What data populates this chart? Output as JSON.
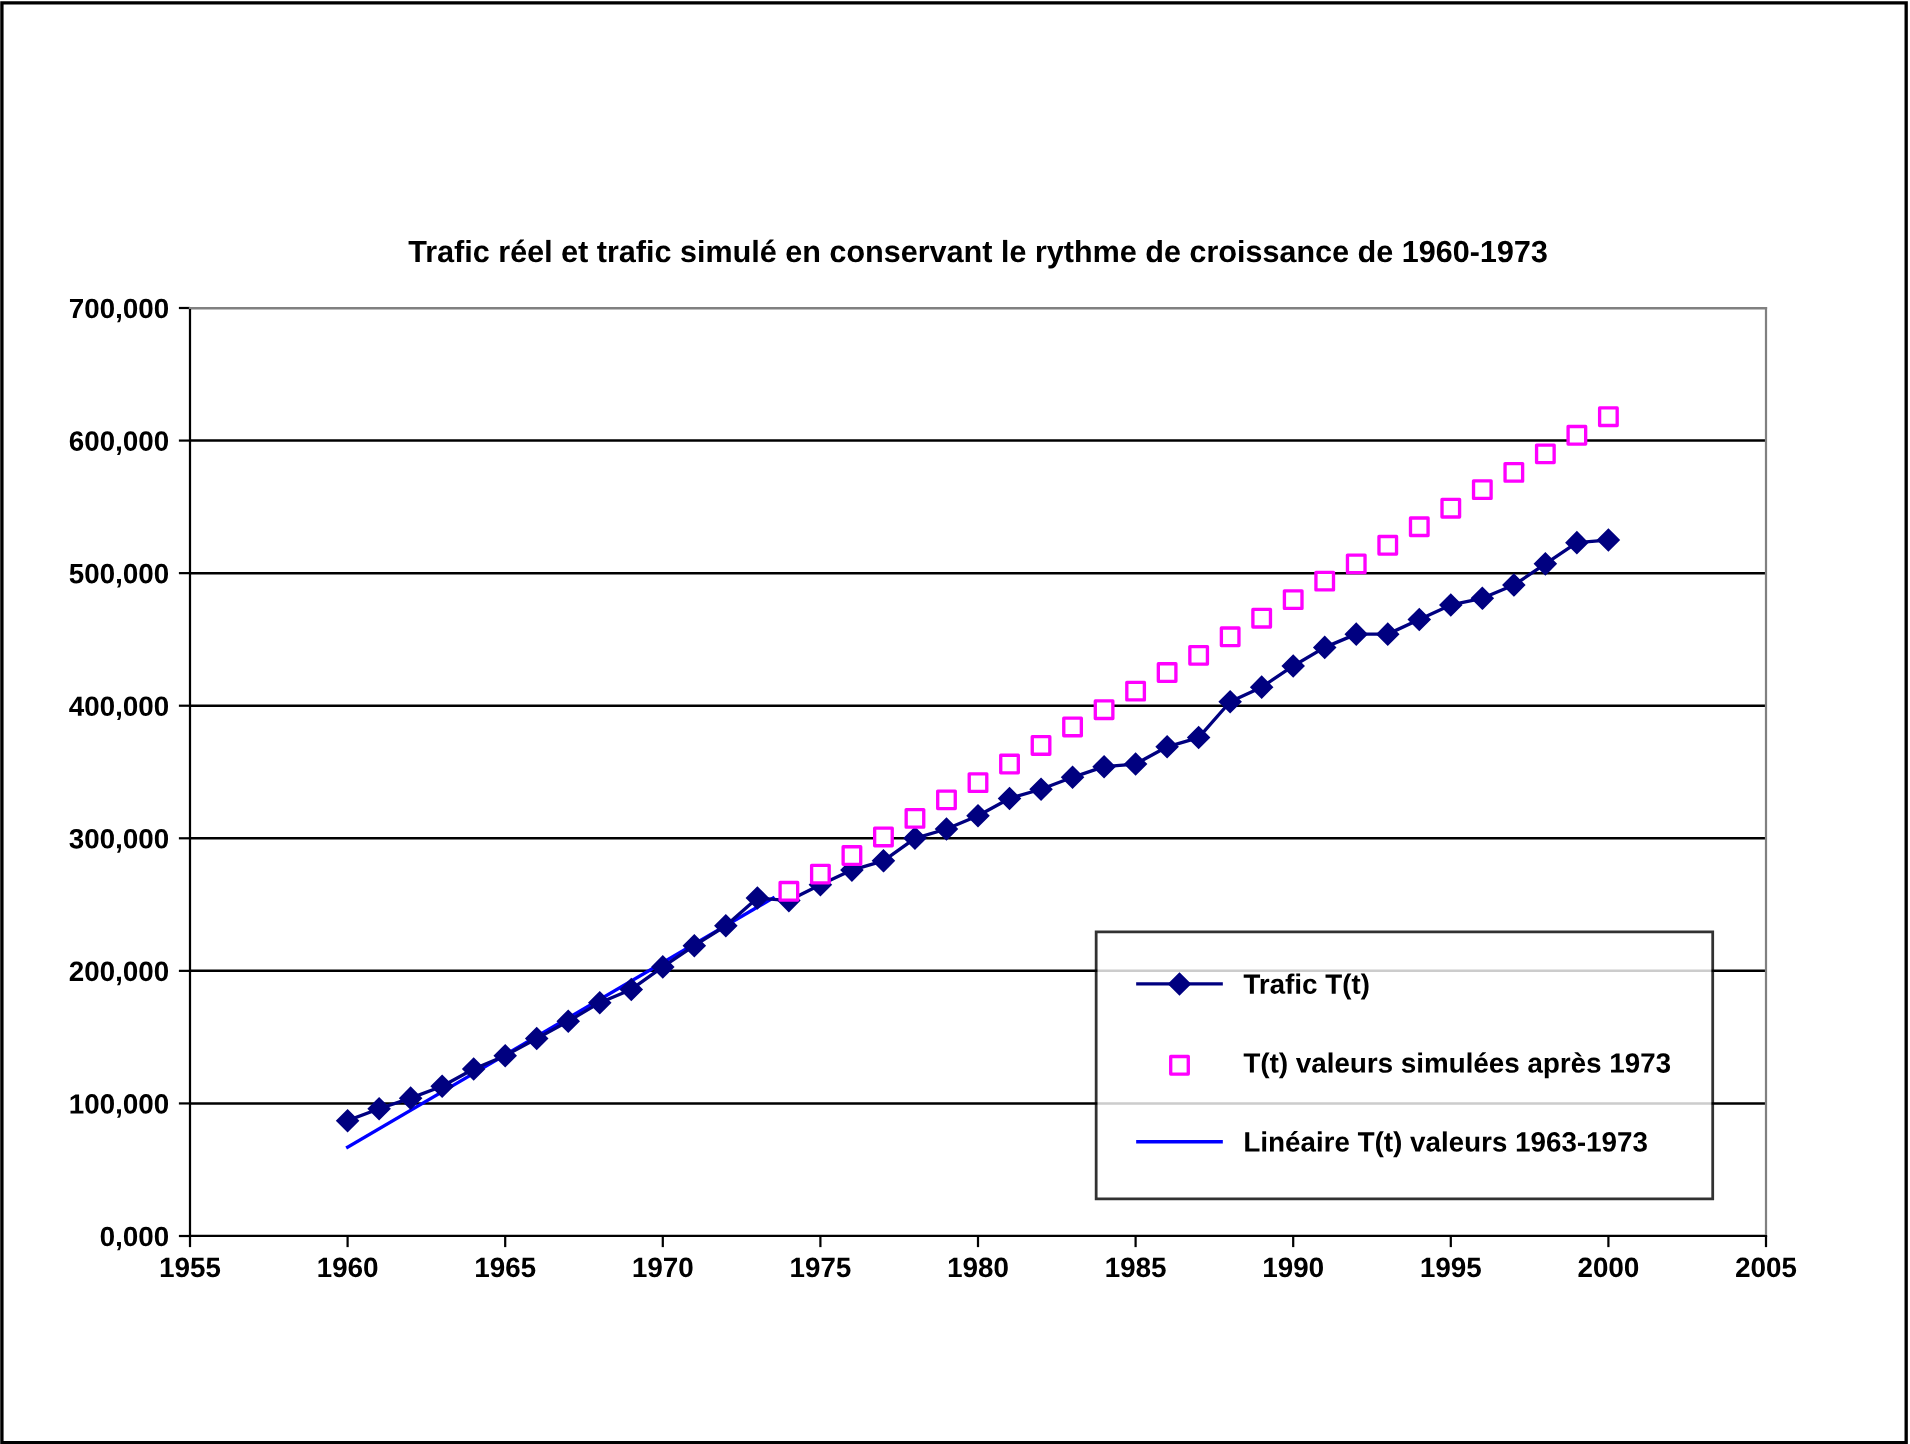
{
  "chart_data": {
    "type": "line",
    "title": "Trafic réel et trafic simulé en conservant le rythme de croissance de 1960-1973",
    "series": [
      {
        "name": "Trafic T(t)",
        "color": "#000080",
        "marker": "diamond",
        "x": [
          1960,
          1961,
          1962,
          1963,
          1964,
          1965,
          1966,
          1967,
          1968,
          1969,
          1970,
          1971,
          1972,
          1973,
          1974,
          1975,
          1976,
          1977,
          1978,
          1979,
          1980,
          1981,
          1982,
          1983,
          1984,
          1985,
          1986,
          1987,
          1988,
          1989,
          1990,
          1991,
          1992,
          1993,
          1994,
          1995,
          1996,
          1997,
          1998,
          1999,
          2000
        ],
        "values": [
          87000,
          96000,
          104000,
          113000,
          126000,
          136000,
          149000,
          162000,
          176000,
          186000,
          203000,
          219000,
          234000,
          255000,
          253000,
          265000,
          276000,
          283000,
          300000,
          307000,
          317000,
          330000,
          337000,
          346000,
          354000,
          356000,
          369000,
          376000,
          403000,
          414000,
          430000,
          444000,
          454000,
          454000,
          465000,
          476000,
          481000,
          491000,
          507000,
          523000,
          525000
        ]
      },
      {
        "name": "T(t) valeurs simulées après 1973",
        "color": "#ff00ff",
        "type": "scatter",
        "marker": "square",
        "x": [
          1974,
          1975,
          1976,
          1977,
          1978,
          1979,
          1980,
          1981,
          1982,
          1983,
          1984,
          1985,
          1986,
          1987,
          1988,
          1989,
          1990,
          1991,
          1992,
          1993,
          1994,
          1995,
          1996,
          1997,
          1998,
          1999,
          2000
        ],
        "values": [
          260000,
          273000,
          287000,
          301000,
          315000,
          329000,
          342000,
          356000,
          370000,
          384000,
          397000,
          411000,
          425000,
          438000,
          452000,
          466000,
          480000,
          494000,
          507000,
          521000,
          535000,
          549000,
          563000,
          576000,
          590000,
          604000,
          618000
        ]
      },
      {
        "name": "Linéaire T(t) valeurs 1963-1973",
        "color": "#0000ff",
        "marker": "none",
        "x": [
          1960,
          1973.5
        ],
        "values": [
          67000,
          255000
        ]
      }
    ],
    "xlim": [
      1955,
      2005
    ],
    "xticks": [
      1955,
      1960,
      1965,
      1970,
      1975,
      1980,
      1985,
      1990,
      1995,
      2000,
      2005
    ],
    "ylim": [
      0,
      700000
    ],
    "yticks": [
      {
        "value": 0,
        "label": "0,000"
      },
      {
        "value": 100000,
        "label": "100,000"
      },
      {
        "value": 200000,
        "label": "200,000"
      },
      {
        "value": 300000,
        "label": "300,000"
      },
      {
        "value": 400000,
        "label": "400,000"
      },
      {
        "value": 500000,
        "label": "500,000"
      },
      {
        "value": 600000,
        "label": "600,000"
      },
      {
        "value": 700000,
        "label": "700,000"
      }
    ],
    "grid": "y",
    "legend": "bottom right"
  }
}
